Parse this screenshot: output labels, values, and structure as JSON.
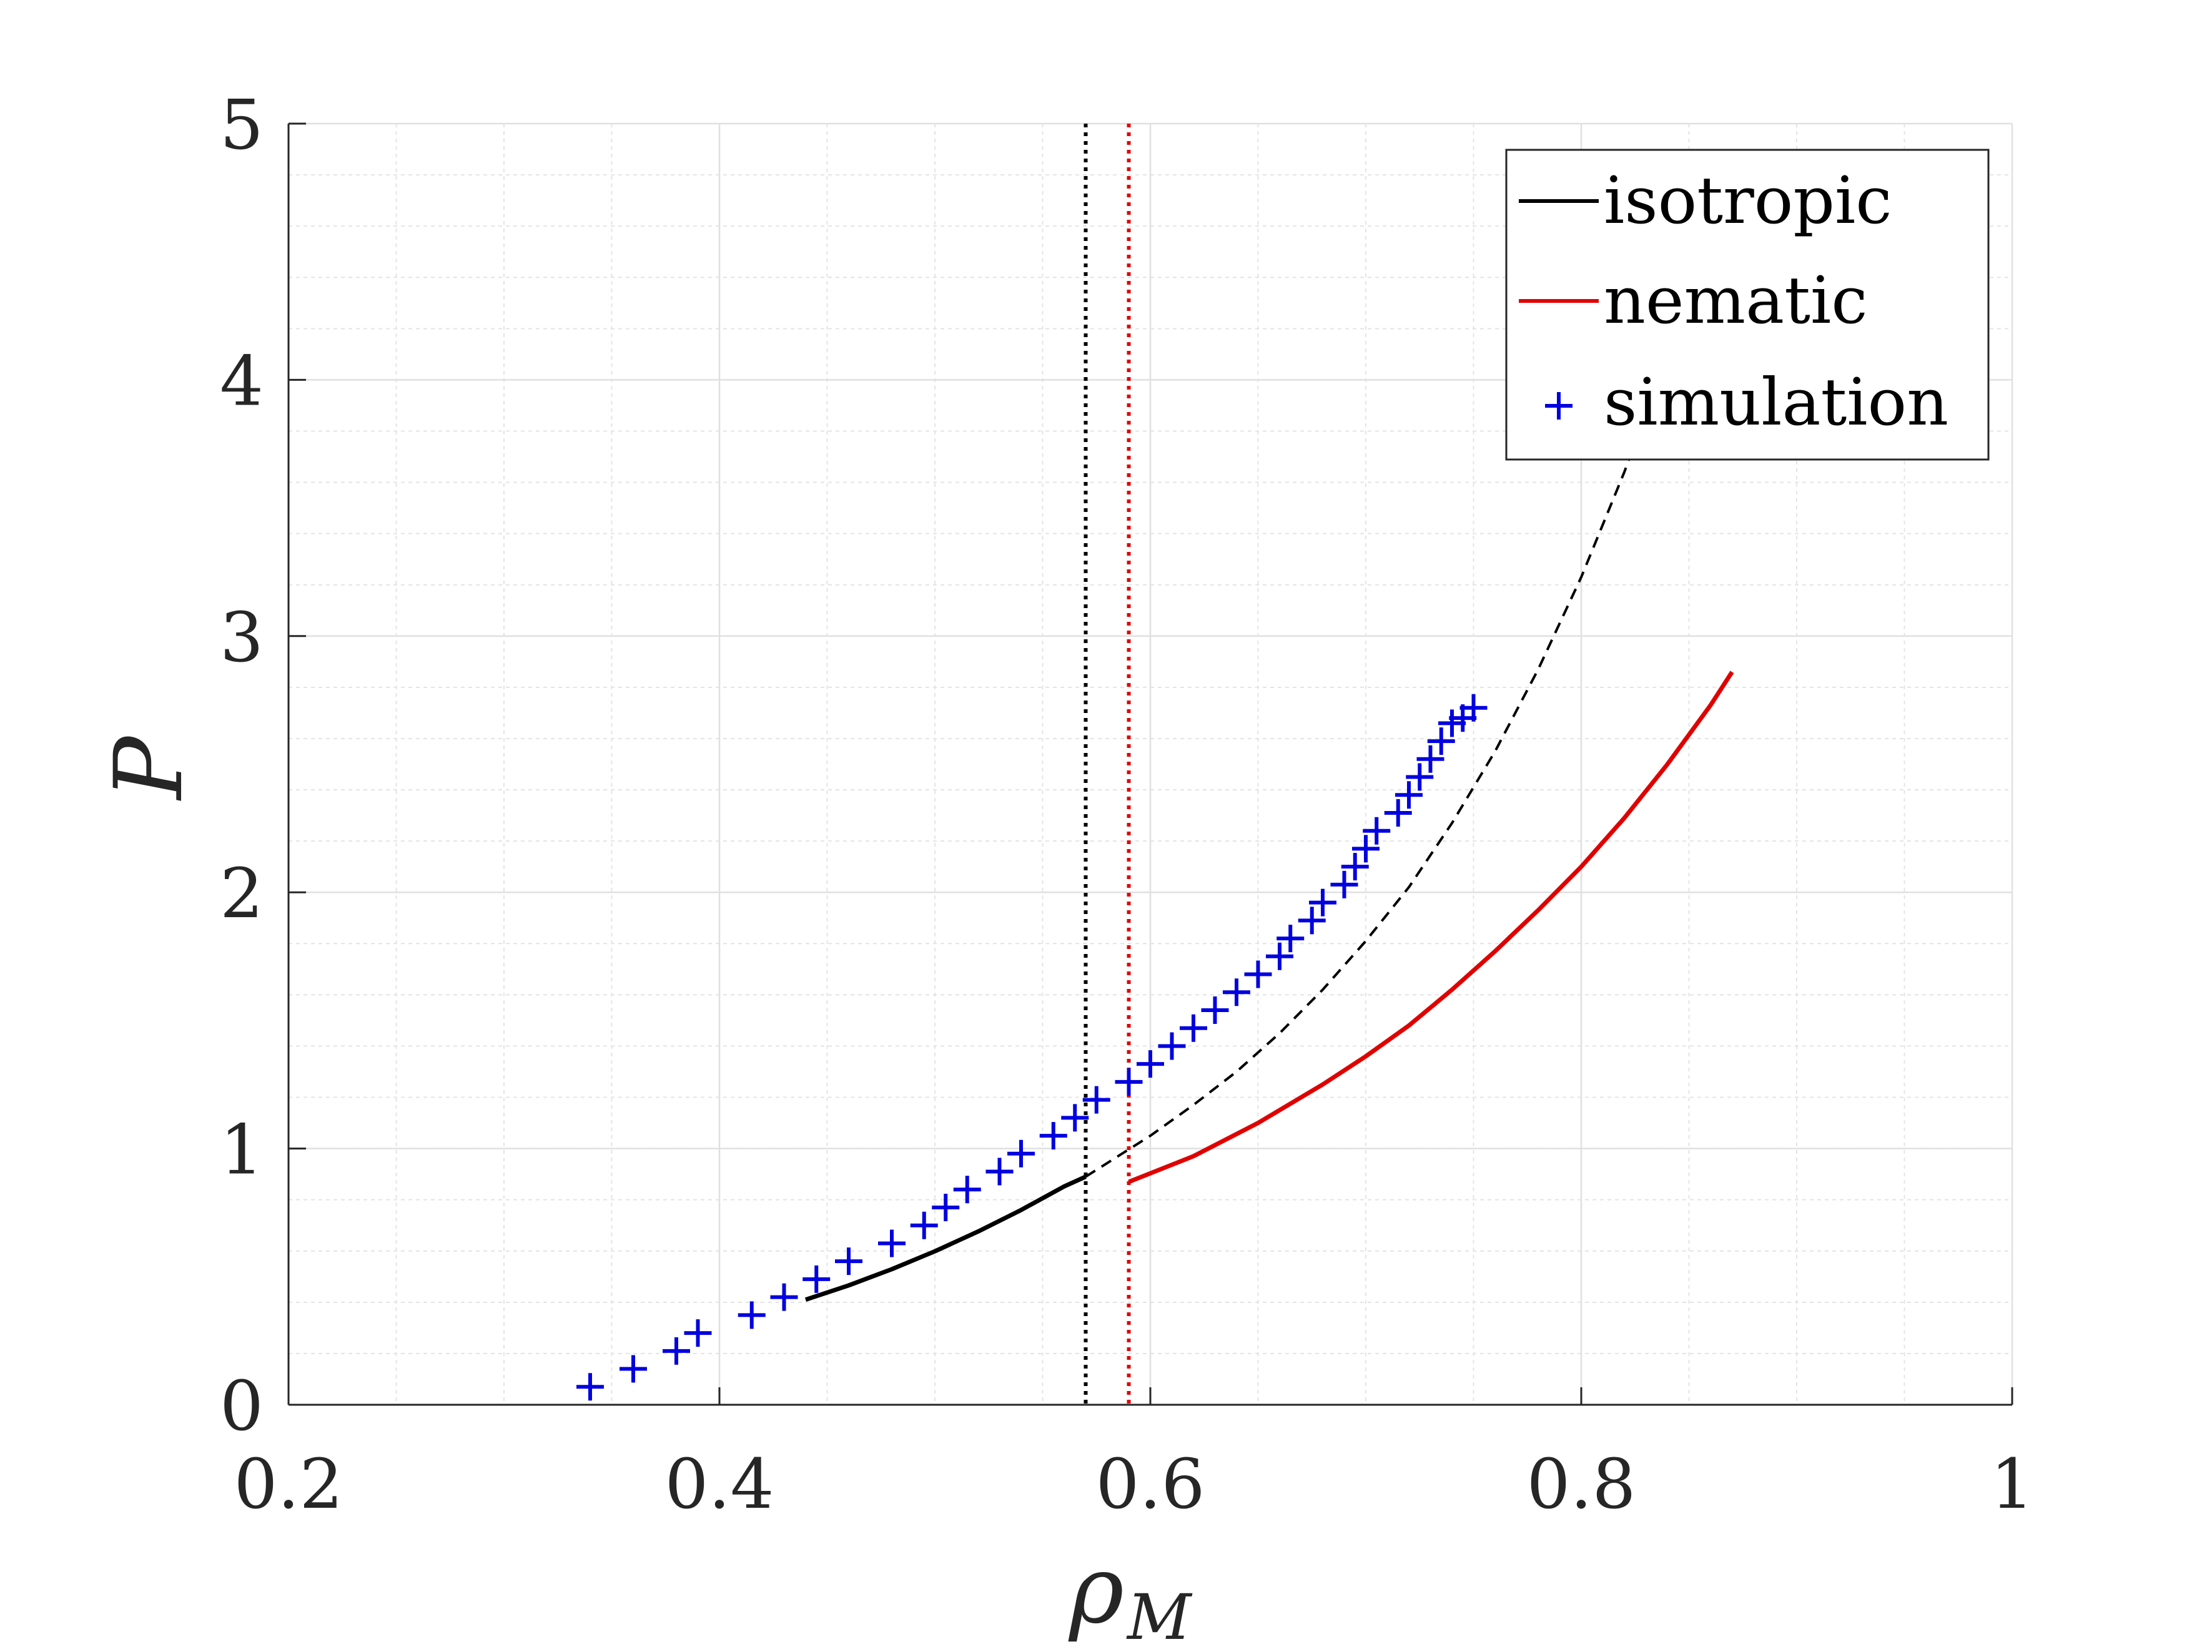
{
  "chart_data": {
    "type": "line",
    "xlabel_main": "ρ",
    "xlabel_sub": "M",
    "ylabel": "P",
    "xlim": [
      0.2,
      1
    ],
    "ylim": [
      0,
      5
    ],
    "xticks": [
      0.2,
      0.4,
      0.6,
      0.8,
      1
    ],
    "xtick_labels": [
      "0.2",
      "0.4",
      "0.6",
      "0.8",
      "1"
    ],
    "yticks": [
      0,
      1,
      2,
      3,
      4,
      5
    ],
    "ytick_labels": [
      "0",
      "1",
      "2",
      "3",
      "4",
      "5"
    ],
    "grid": true,
    "minor_grid": true,
    "legend_position": "top-right",
    "legend": [
      {
        "label": "isotropic",
        "color": "#000000",
        "marker": "line"
      },
      {
        "label": "nematic",
        "color": "#e00000",
        "marker": "line"
      },
      {
        "label": "simulation",
        "color": "#0000e0",
        "marker": "plus"
      }
    ],
    "series": [
      {
        "name": "isotropic",
        "style": "solid",
        "color": "#000000",
        "x": [
          0.44,
          0.46,
          0.48,
          0.5,
          0.52,
          0.54,
          0.56,
          0.57
        ],
        "y": [
          0.41,
          0.466,
          0.529,
          0.599,
          0.676,
          0.76,
          0.852,
          0.89
        ]
      },
      {
        "name": "isotropic-metastable",
        "style": "dashed",
        "color": "#000000",
        "x": [
          0.57,
          0.6,
          0.62,
          0.64,
          0.66,
          0.68,
          0.7,
          0.72,
          0.74,
          0.76,
          0.78,
          0.8,
          0.82,
          0.84,
          0.86
        ],
        "y": [
          0.89,
          1.05,
          1.17,
          1.3,
          1.45,
          1.62,
          1.81,
          2.02,
          2.27,
          2.55,
          2.87,
          3.23,
          3.64,
          4.1,
          4.6
        ]
      },
      {
        "name": "nematic",
        "style": "solid",
        "color": "#e00000",
        "x": [
          0.59,
          0.62,
          0.65,
          0.68,
          0.7,
          0.72,
          0.74,
          0.76,
          0.78,
          0.8,
          0.82,
          0.84,
          0.86,
          0.87
        ],
        "y": [
          0.87,
          0.97,
          1.1,
          1.25,
          1.36,
          1.48,
          1.62,
          1.77,
          1.93,
          2.1,
          2.29,
          2.5,
          2.73,
          2.86
        ]
      },
      {
        "name": "simulation",
        "style": "plus",
        "color": "#0000e0",
        "x": [
          0.34,
          0.36,
          0.38,
          0.39,
          0.415,
          0.43,
          0.445,
          0.46,
          0.48,
          0.495,
          0.505,
          0.515,
          0.53,
          0.54,
          0.555,
          0.565,
          0.575,
          0.59,
          0.6,
          0.61,
          0.62,
          0.63,
          0.64,
          0.65,
          0.66,
          0.665,
          0.675,
          0.68,
          0.69,
          0.695,
          0.7,
          0.705,
          0.715,
          0.72,
          0.725,
          0.73,
          0.735,
          0.74,
          0.745,
          0.75
        ],
        "y": [
          0.07,
          0.14,
          0.21,
          0.28,
          0.35,
          0.42,
          0.49,
          0.56,
          0.63,
          0.7,
          0.77,
          0.84,
          0.91,
          0.98,
          1.05,
          1.12,
          1.19,
          1.26,
          1.33,
          1.4,
          1.47,
          1.54,
          1.61,
          1.68,
          1.75,
          1.82,
          1.89,
          1.96,
          2.03,
          2.1,
          2.17,
          2.24,
          2.31,
          2.38,
          2.45,
          2.52,
          2.59,
          2.66,
          2.68,
          2.72
        ]
      }
    ],
    "vlines": [
      {
        "name": "isotropic-coexistence",
        "x": 0.57,
        "style": "dotted",
        "color": "#000000"
      },
      {
        "name": "nematic-coexistence",
        "x": 0.59,
        "style": "dotted",
        "color": "#e00000"
      }
    ]
  }
}
